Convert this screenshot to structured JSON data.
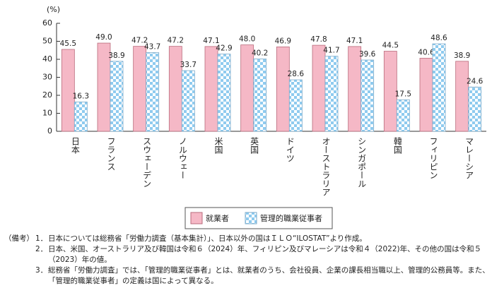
{
  "chart_data": {
    "type": "bar",
    "y_label": "(%)",
    "categories": [
      "日本",
      "フランス",
      "スウェーデン",
      "ノルウェー",
      "米国",
      "英国",
      "ドイツ",
      "オーストラリア",
      "シンガポール",
      "韓国",
      "フィリピン",
      "マレーシア"
    ],
    "series": [
      {
        "name": "就業者",
        "color": "#f5b8c6",
        "values": [
          45.5,
          49.0,
          47.2,
          47.2,
          47.1,
          48.0,
          46.9,
          47.8,
          47.1,
          44.5,
          40.6,
          38.9
        ],
        "value_labels": [
          "45.5",
          "49.0",
          "47.2",
          "47.2",
          "47.1",
          "48.0",
          "46.9",
          "47.8",
          "47.1",
          "44.5",
          "40.6",
          "38.9"
        ]
      },
      {
        "name": "管理的職業従事者",
        "color": "#8fcbef",
        "values": [
          16.3,
          38.9,
          43.7,
          33.7,
          42.9,
          40.2,
          28.6,
          41.7,
          39.6,
          17.5,
          48.6,
          24.6
        ],
        "value_labels": [
          "16.3",
          "38.9",
          "43.7",
          "33.7",
          "42.9",
          "40.2",
          "28.6",
          "41.7",
          "39.6",
          "17.5",
          "48.6",
          "24.6"
        ]
      }
    ],
    "ylim": [
      0,
      60
    ],
    "yticks": [
      0,
      10,
      20,
      30,
      40,
      50,
      60
    ]
  },
  "notes": {
    "label": "（備考）",
    "items": [
      {
        "number": "1．",
        "text": "日本については総務省「労働力調査（基本集計）」、日本以外の国はＩＬＯ“ILOSTAT”より作成。"
      },
      {
        "number": "2．",
        "text": "日本、米国、オーストラリア及び韓国は令和６（2024）年、フィリピン及びマレーシアは令和４（2022)年、その他の国は令和５（2023）年の値。"
      },
      {
        "number": "3．",
        "text": "総務省「労働力調査」では、「管理的職業従事者」とは、就業者のうち、会社役員、企業の課長相当職以上、管理的公務員等。また、「管理的職業従事者」の定義は国によって異なる。"
      }
    ]
  }
}
